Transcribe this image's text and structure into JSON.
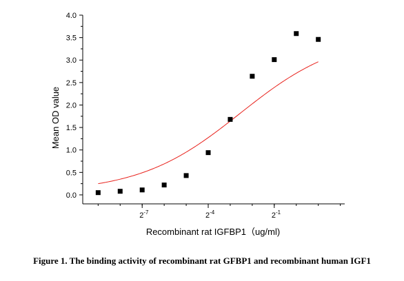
{
  "chart_data": {
    "type": "scatter",
    "ylabel": "Mean OD value",
    "xlabel": "Recombinant rat IGFBP1（ug/ml)",
    "x_scale": "log2",
    "x_tick_labels": [
      {
        "base": "2",
        "exp": "-7"
      },
      {
        "base": "2",
        "exp": "-4"
      },
      {
        "base": "2",
        "exp": "-1"
      }
    ],
    "x_tick_values": [
      -7,
      -4,
      -1
    ],
    "xlim_log2": [
      -9.7,
      2.2
    ],
    "ylim": [
      -0.2,
      4.0
    ],
    "y_ticks": [
      0.0,
      0.5,
      1.0,
      1.5,
      2.0,
      2.5,
      3.0,
      3.5,
      4.0
    ],
    "y_tick_labels": [
      "0.0",
      "0.5",
      "1.0",
      "1.5",
      "2.0",
      "2.5",
      "3.0",
      "3.5",
      "4.0"
    ],
    "series": [
      {
        "marker_color": "#000000",
        "fit_color": "#e8211b",
        "x_log2": [
          -9,
          -8,
          -7,
          -6,
          -5,
          -4,
          -3,
          -2,
          -1,
          0,
          1
        ],
        "y": [
          0.05,
          0.08,
          0.11,
          0.22,
          0.43,
          0.94,
          1.68,
          2.64,
          3.01,
          3.59,
          3.46
        ]
      }
    ],
    "fit": {
      "bottom": 0.05,
      "top": 3.58,
      "log2_ec50": -2.55,
      "hill": 0.63
    },
    "grid": false,
    "legend": "none"
  },
  "caption": "Figure 1. The binding activity of recombinant rat GFBP1 and recombinant human IGF1"
}
